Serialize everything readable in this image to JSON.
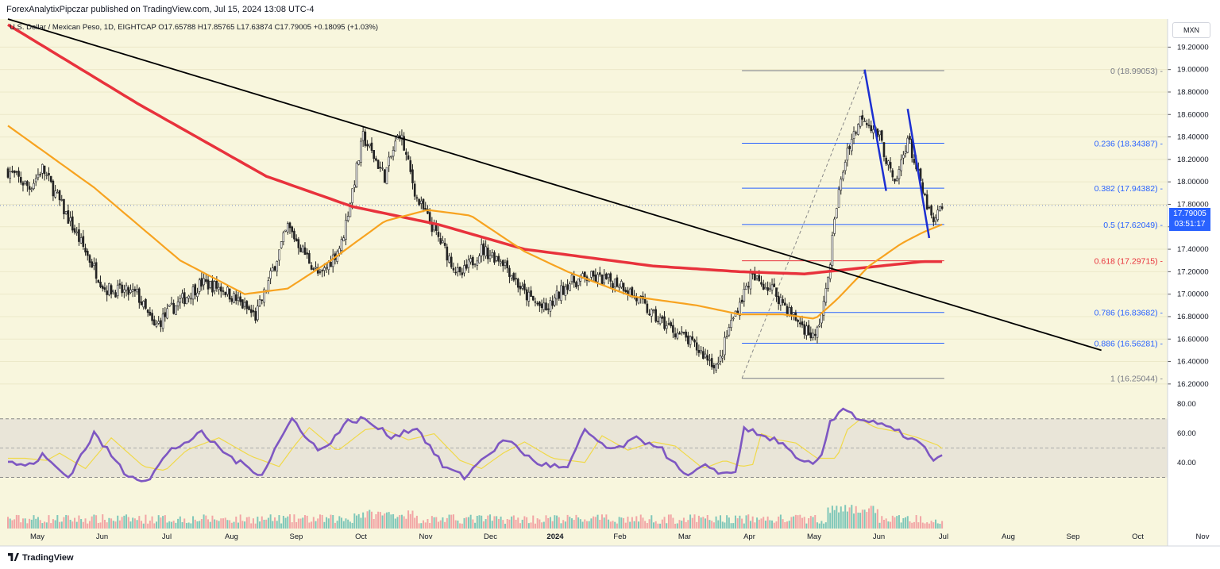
{
  "header": {
    "published_by": "ForexAnalytixPipczar published on TradingView.com, Jul 15, 2024 13:08 UTC-4",
    "legend": "U.S. Dollar / Mexican Peso, 1D, EIGHTCAP  O17.65788  H17.85765  L17.63874  C17.79005  +0.18095 (+1.03%)"
  },
  "currency_button": "MXN",
  "current_price": {
    "price": "17.79005",
    "countdown": "03:51:17"
  },
  "footer": {
    "brand": "TradingView"
  },
  "colors": {
    "background": "#f8f6dd",
    "candle": "#222222",
    "ma_red": "#e8323c",
    "ma_orange": "#f7a320",
    "trend_black": "#000000",
    "fib_blue": "#2962ff",
    "fib_red": "#e8323c",
    "pattern_blue": "#1c2fd1",
    "rsi": "#7e57c2",
    "rsi_signal": "#f0d94a",
    "vol_up": "#7fc7b9",
    "vol_down": "#f2a5a5"
  },
  "chart_data": {
    "type": "candlestick",
    "title": "U.S. Dollar / Mexican Peso, 1D, EIGHTCAP",
    "x_axis": {
      "ticks": [
        "May",
        "Jun",
        "Jul",
        "Aug",
        "Sep",
        "Oct",
        "Nov",
        "Dec",
        "2024",
        "Feb",
        "Mar",
        "Apr",
        "May",
        "Jun",
        "Jul",
        "Aug",
        "Sep",
        "Oct",
        "Nov"
      ]
    },
    "price_axis": {
      "ylim": [
        16.1,
        19.45
      ],
      "ticks": [
        "19.20000",
        "19.00000",
        "18.80000",
        "18.60000",
        "18.40000",
        "18.20000",
        "18.00000",
        "17.80000",
        "17.60000",
        "17.40000",
        "17.20000",
        "17.00000",
        "16.80000",
        "16.60000",
        "16.40000",
        "16.20000"
      ]
    },
    "price_path_keypoints": [
      [
        0,
        18.1
      ],
      [
        10,
        17.95
      ],
      [
        16,
        18.12
      ],
      [
        30,
        17.6
      ],
      [
        45,
        17.05
      ],
      [
        60,
        17.0
      ],
      [
        68,
        16.7
      ],
      [
        75,
        16.85
      ],
      [
        90,
        17.1
      ],
      [
        100,
        17.05
      ],
      [
        115,
        16.8
      ],
      [
        120,
        17.05
      ],
      [
        130,
        17.6
      ],
      [
        145,
        17.15
      ],
      [
        155,
        17.45
      ],
      [
        165,
        18.4
      ],
      [
        175,
        18.05
      ],
      [
        182,
        18.45
      ],
      [
        190,
        17.85
      ],
      [
        200,
        17.5
      ],
      [
        210,
        17.15
      ],
      [
        220,
        17.4
      ],
      [
        230,
        17.3
      ],
      [
        240,
        17.0
      ],
      [
        250,
        16.85
      ],
      [
        260,
        17.1
      ],
      [
        270,
        17.15
      ],
      [
        285,
        17.1
      ],
      [
        300,
        16.8
      ],
      [
        315,
        16.6
      ],
      [
        330,
        16.35
      ],
      [
        335,
        16.7
      ],
      [
        345,
        17.15
      ],
      [
        355,
        17.05
      ],
      [
        365,
        16.8
      ],
      [
        375,
        16.6
      ],
      [
        380,
        17.0
      ],
      [
        385,
        17.8
      ],
      [
        390,
        18.3
      ],
      [
        397,
        18.6
      ],
      [
        405,
        18.4
      ],
      [
        412,
        17.95
      ],
      [
        418,
        18.4
      ],
      [
        425,
        17.9
      ],
      [
        430,
        17.62
      ],
      [
        434,
        17.79
      ]
    ],
    "moving_averages": [
      {
        "name": "MA long",
        "color": "red",
        "keypoints": [
          [
            0,
            19.4
          ],
          [
            60,
            18.7
          ],
          [
            120,
            18.05
          ],
          [
            160,
            17.78
          ],
          [
            200,
            17.62
          ],
          [
            240,
            17.4
          ],
          [
            300,
            17.25
          ],
          [
            340,
            17.2
          ],
          [
            370,
            17.18
          ],
          [
            400,
            17.24
          ],
          [
            425,
            17.29
          ],
          [
            434,
            17.29
          ]
        ]
      },
      {
        "name": "MA short",
        "color": "orange",
        "keypoints": [
          [
            0,
            18.5
          ],
          [
            40,
            17.95
          ],
          [
            80,
            17.3
          ],
          [
            110,
            17.0
          ],
          [
            130,
            17.05
          ],
          [
            150,
            17.3
          ],
          [
            175,
            17.65
          ],
          [
            195,
            17.75
          ],
          [
            215,
            17.7
          ],
          [
            240,
            17.38
          ],
          [
            260,
            17.2
          ],
          [
            290,
            16.98
          ],
          [
            320,
            16.9
          ],
          [
            340,
            16.82
          ],
          [
            360,
            16.82
          ],
          [
            375,
            16.78
          ],
          [
            385,
            16.95
          ],
          [
            400,
            17.25
          ],
          [
            415,
            17.45
          ],
          [
            425,
            17.55
          ],
          [
            434,
            17.62
          ]
        ]
      }
    ],
    "trendline": {
      "from": [
        0,
        19.45
      ],
      "to": [
        508,
        16.5
      ]
    },
    "pattern_lines": [
      {
        "from": [
          398,
          19.0
        ],
        "to": [
          408,
          17.92
        ]
      },
      {
        "from": [
          418,
          18.65
        ],
        "to": [
          428,
          17.5
        ]
      }
    ],
    "fibonacci": {
      "from_index": 341,
      "to_index": 435,
      "levels": [
        {
          "ratio": "0",
          "value": 18.99053,
          "label": "0 (18.99053)",
          "color": "gray"
        },
        {
          "ratio": "0.236",
          "value": 18.34387,
          "label": "0.236 (18.34387)",
          "color": "blue"
        },
        {
          "ratio": "0.382",
          "value": 17.94382,
          "label": "0.382 (17.94382)",
          "color": "blue"
        },
        {
          "ratio": "0.5",
          "value": 17.62049,
          "label": "0.5 (17.62049)",
          "color": "blue"
        },
        {
          "ratio": "0.618",
          "value": 17.29715,
          "label": "0.618 (17.29715)",
          "color": "red"
        },
        {
          "ratio": "0.786",
          "value": 16.83682,
          "label": "0.786 (16.83682)",
          "color": "blue"
        },
        {
          "ratio": "0.886",
          "value": 16.56281,
          "label": "0.886 (16.56281)",
          "color": "blue"
        },
        {
          "ratio": "1",
          "value": 16.25044,
          "label": "1 (16.25044)",
          "color": "gray"
        }
      ]
    },
    "rsi": {
      "ylim": [
        20,
        85
      ],
      "ticks": [
        "80.00",
        "60.00",
        "40.00"
      ],
      "band": [
        30,
        70
      ],
      "midline": 50,
      "keypoints": [
        [
          0,
          40
        ],
        [
          10,
          38
        ],
        [
          16,
          45
        ],
        [
          28,
          30
        ],
        [
          40,
          60
        ],
        [
          55,
          32
        ],
        [
          65,
          28
        ],
        [
          75,
          48
        ],
        [
          90,
          60
        ],
        [
          105,
          42
        ],
        [
          118,
          32
        ],
        [
          125,
          52
        ],
        [
          132,
          70
        ],
        [
          145,
          47
        ],
        [
          158,
          68
        ],
        [
          165,
          70
        ],
        [
          178,
          58
        ],
        [
          190,
          64
        ],
        [
          202,
          38
        ],
        [
          212,
          30
        ],
        [
          222,
          45
        ],
        [
          232,
          56
        ],
        [
          245,
          40
        ],
        [
          260,
          36
        ],
        [
          268,
          62
        ],
        [
          280,
          48
        ],
        [
          292,
          56
        ],
        [
          302,
          52
        ],
        [
          315,
          30
        ],
        [
          325,
          38
        ],
        [
          333,
          32
        ],
        [
          338,
          34
        ],
        [
          342,
          64
        ],
        [
          350,
          58
        ],
        [
          358,
          55
        ],
        [
          368,
          40
        ],
        [
          377,
          40
        ],
        [
          382,
          68
        ],
        [
          388,
          78
        ],
        [
          395,
          70
        ],
        [
          405,
          66
        ],
        [
          415,
          60
        ],
        [
          425,
          52
        ],
        [
          430,
          40
        ],
        [
          434,
          46
        ]
      ]
    },
    "volume": {
      "description": "daily volume histogram",
      "ylim": [
        0,
        100
      ]
    }
  }
}
